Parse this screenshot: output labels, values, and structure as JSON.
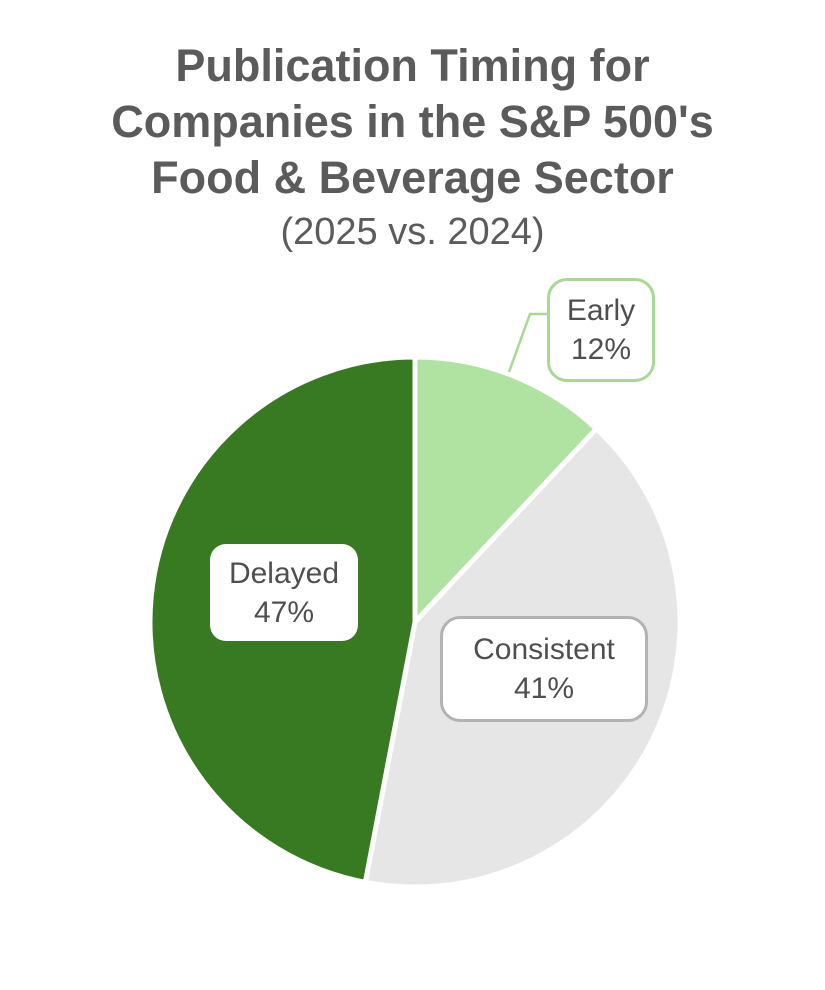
{
  "chart_data": {
    "type": "pie",
    "title": "Publication Timing for Companies in the S&P 500's Food & Beverage Sector",
    "title_lines": [
      "Publication Timing for",
      "Companies in the S&P 500's",
      "Food & Beverage Sector"
    ],
    "subtitle": "(2025 vs. 2024)",
    "start_angle_deg": 0,
    "direction": "clockwise",
    "legend": "none",
    "segments": [
      {
        "label": "Early",
        "value": 12,
        "pct_label": "12%",
        "color": "#b0e2a2",
        "callout": true
      },
      {
        "label": "Consistent",
        "value": 41,
        "pct_label": "41%",
        "color": "#e6e6e6",
        "callout": false
      },
      {
        "label": "Delayed",
        "value": 47,
        "pct_label": "47%",
        "color": "#387a21",
        "callout": false
      }
    ],
    "colors": {
      "background": "#ffffff",
      "title_text": "#5b5b5b",
      "label_text": "#4f4f4f",
      "slice_gap": "#ffffff",
      "early_callout_border": "#a8d994",
      "consistent_box_border": "#b3b3b3"
    }
  }
}
